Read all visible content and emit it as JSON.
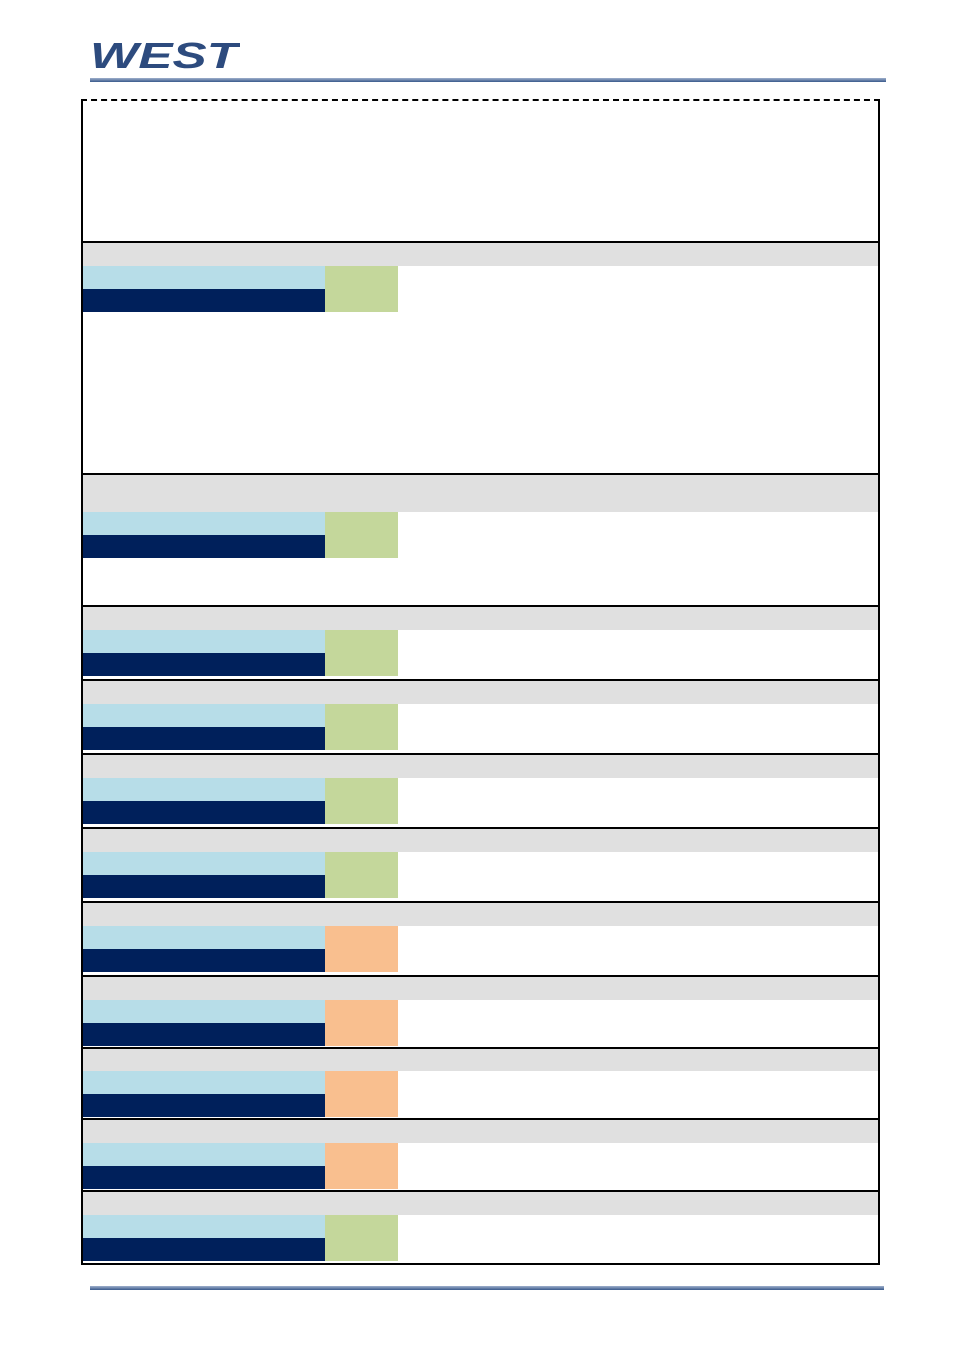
{
  "brand": {
    "logo_text": "WEST",
    "color": "#2d4b7e"
  },
  "colors": {
    "header_rule": "#3a5a8c",
    "grey_band": "#e0e0e0",
    "light_blue": "#b7dde8",
    "dark_blue": "#00205b",
    "status_green": "#c4d79b",
    "status_orange": "#f9bf8f"
  },
  "intro_text": "",
  "parameters": [
    {
      "band_title": "",
      "status": "green"
    },
    {
      "band_title": "",
      "status": "green"
    },
    {
      "band_title": "",
      "status": "green"
    },
    {
      "band_title": "",
      "status": "green"
    },
    {
      "band_title": "",
      "status": "green"
    },
    {
      "band_title": "",
      "status": "green"
    },
    {
      "band_title": "",
      "status": "orange"
    },
    {
      "band_title": "",
      "status": "orange"
    },
    {
      "band_title": "",
      "status": "orange"
    },
    {
      "band_title": "",
      "status": "orange"
    },
    {
      "band_title": "",
      "status": "green"
    }
  ]
}
